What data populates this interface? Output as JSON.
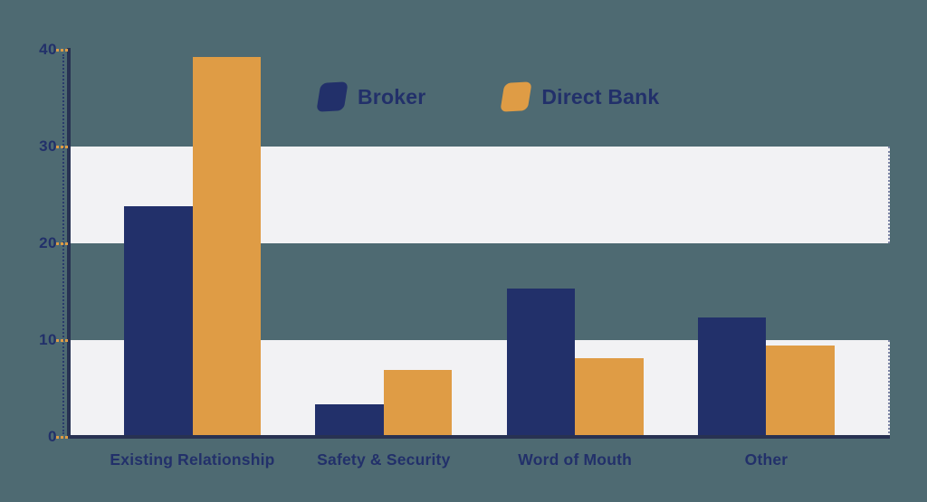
{
  "chart_data": {
    "type": "bar",
    "categories": [
      "Existing Relationship",
      "Safety & Security",
      "Word of Mouth",
      "Other"
    ],
    "series": [
      {
        "name": "Broker",
        "color": "#22306a",
        "values": [
          23.8,
          3.4,
          15.3,
          12.3
        ]
      },
      {
        "name": "Direct Bank",
        "color": "#df9c45",
        "values": [
          39.3,
          6.9,
          8.1,
          9.4
        ]
      }
    ],
    "ylim": [
      0,
      40
    ],
    "yticks": [
      0,
      10,
      20,
      30,
      40
    ],
    "xlabel": "",
    "ylabel": "",
    "legend_position": "top-center",
    "grid": false,
    "background_bands": [
      [
        0,
        10
      ],
      [
        20,
        30
      ]
    ],
    "colors": {
      "background": "#4e6a72",
      "band": "#f2f2f4",
      "axis": "#283252",
      "tick": "#df9c45",
      "text": "#22306a"
    }
  }
}
